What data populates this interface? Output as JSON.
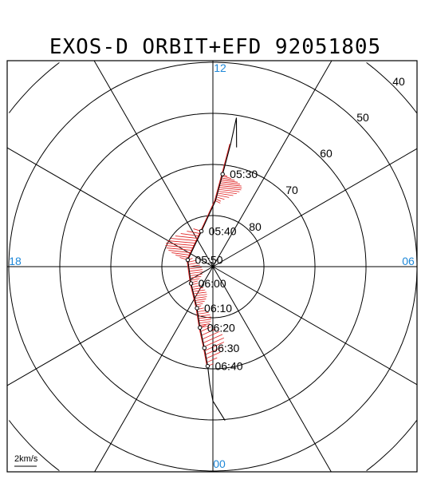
{
  "title": "EXOS-D ORBIT+EFD 92051805",
  "chart_data": {
    "type": "scatter",
    "projection": "polar (magnetic latitude / magnetic local time)",
    "title": "EXOS-D ORBIT+EFD 92051805",
    "mlt_labels": [
      {
        "mlt": 12,
        "text": "12"
      },
      {
        "mlt": 18,
        "text": "18"
      },
      {
        "mlt": 6,
        "text": "06"
      },
      {
        "mlt": 0,
        "text": "00"
      }
    ],
    "latitude_labels": [
      "80",
      "70",
      "60",
      "50",
      "40"
    ],
    "latitude_circles": [
      80,
      70,
      60,
      50,
      40
    ],
    "scale_label": "2km/s",
    "orbit": {
      "times": [
        "05:30",
        "05:40",
        "05:50",
        "06:00",
        "06:10",
        "06:20",
        "06:30",
        "06:40"
      ],
      "track": [
        {
          "mlat": 66.2,
          "mlt": 11.25
        },
        {
          "mlat": 60.5,
          "mlt": 11.4
        },
        {
          "mlat": 65.7,
          "mlt": 11.45
        },
        {
          "mlat": 71.8,
          "mlt": 11.6
        },
        {
          "mlat": 77.1,
          "mlt": 11.85
        },
        {
          "mlat": 82.7,
          "mlt": 13.2
        },
        {
          "mlat": 84.9,
          "mlt": 17.0
        },
        {
          "mlat": 84.6,
          "mlt": 20.5
        },
        {
          "mlat": 81.3,
          "mlt": 22.6
        },
        {
          "mlat": 77.8,
          "mlt": 23.2
        },
        {
          "mlat": 74.0,
          "mlt": 23.6
        },
        {
          "mlat": 70.5,
          "mlt": 23.8
        },
        {
          "mlat": 67.0,
          "mlt": 23.9
        },
        {
          "mlat": 63.7,
          "mlt": 0.0
        },
        {
          "mlat": 59.8,
          "mlt": 0.3
        }
      ],
      "markers": [
        {
          "time": "05:30",
          "mlat": 71.8,
          "mlt": 11.6
        },
        {
          "time": "05:40",
          "mlat": 82.7,
          "mlt": 13.2
        },
        {
          "time": "05:50",
          "mlat": 84.9,
          "mlt": 17.0
        },
        {
          "time": "06:00",
          "mlat": 84.6,
          "mlt": 20.5
        },
        {
          "time": "06:10",
          "mlat": 81.3,
          "mlt": 22.6
        },
        {
          "time": "06:20",
          "mlat": 77.8,
          "mlt": 23.2
        },
        {
          "time": "06:30",
          "mlat": 74.0,
          "mlt": 23.6
        },
        {
          "time": "06:40",
          "mlat": 70.5,
          "mlt": 23.8
        }
      ]
    },
    "colors": {
      "grid": "#000000",
      "orbit": "#000000",
      "efd": "#e02020",
      "mlt_labels": "#1e88d8"
    }
  }
}
